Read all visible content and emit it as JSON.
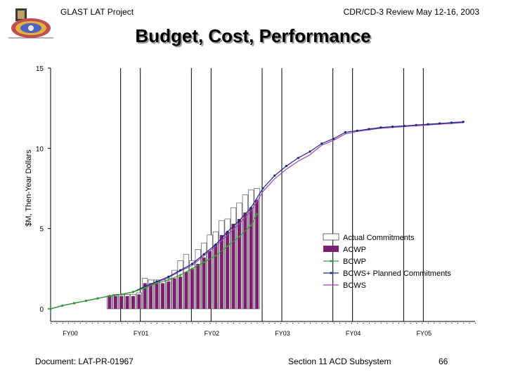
{
  "header": {
    "left": "GLAST LAT Project",
    "right": "CDR/CD-3 Review May 12-16, 2003"
  },
  "title": "Budget, Cost, Performance",
  "footer": {
    "document": "Document:   LAT-PR-01967",
    "section": "Section 11 ACD Subsystem",
    "page": "66"
  },
  "colors": {
    "acwp": "#7b1f6e",
    "bcwp": "#2e9e2e",
    "bcws_planned": "#1a2a7a",
    "bcws": "#a040c0",
    "actual": "#ffffff"
  },
  "chart_data": {
    "type": "bar",
    "ylabel": "$M, Then-Year Dollars",
    "xlabel": "",
    "ylim": [
      0,
      15
    ],
    "yticks": [
      "0",
      "5",
      "10",
      "15"
    ],
    "x_range": [
      0,
      72
    ],
    "fiscal_years": [
      {
        "label": "FY00",
        "month": 0
      },
      {
        "label": "FY01",
        "month": 12
      },
      {
        "label": "FY02",
        "month": 24
      },
      {
        "label": "FY03",
        "month": 36
      },
      {
        "label": "FY04",
        "month": 48
      },
      {
        "label": "FY05",
        "month": 60
      }
    ],
    "vertical_markers": [
      12,
      24,
      36,
      48,
      60
    ],
    "bar_months": [
      10,
      11,
      12,
      13,
      14,
      15,
      16,
      17,
      18,
      19,
      20,
      21,
      22,
      23,
      24,
      25,
      26,
      27,
      28,
      29,
      30,
      31,
      32,
      33,
      34,
      35
    ],
    "series": [
      {
        "name": "Actual Commitments",
        "kind": "bar",
        "values": [
          0.8,
          0.9,
          0.9,
          0.9,
          0.9,
          1.0,
          1.9,
          1.8,
          1.8,
          1.8,
          1.9,
          2.4,
          3.0,
          3.4,
          3.0,
          3.7,
          4.1,
          4.6,
          4.8,
          5.5,
          5.6,
          6.3,
          6.6,
          7.1,
          7.4,
          7.5
        ]
      },
      {
        "name": "ACWP",
        "kind": "bar",
        "values": [
          0.8,
          0.8,
          0.8,
          0.8,
          0.8,
          0.9,
          1.6,
          1.6,
          1.6,
          1.6,
          1.7,
          1.9,
          2.0,
          2.3,
          2.5,
          2.8,
          3.2,
          3.6,
          4.0,
          4.6,
          4.8,
          5.3,
          5.6,
          6.0,
          6.3,
          6.8
        ]
      },
      {
        "name": "BCWP",
        "kind": "line",
        "x": [
          0,
          2,
          4,
          6,
          8,
          10,
          12,
          14,
          16,
          18,
          20,
          22,
          24,
          26,
          28,
          30,
          32,
          34,
          35
        ],
        "values": [
          0,
          0.2,
          0.35,
          0.5,
          0.65,
          0.8,
          0.9,
          1.05,
          1.3,
          1.6,
          1.8,
          2.1,
          2.5,
          2.9,
          3.3,
          3.9,
          4.5,
          5.2,
          5.9
        ]
      },
      {
        "name": "BCWS+ Planned Commitments",
        "kind": "line",
        "x": [
          0,
          2,
          4,
          6,
          8,
          10,
          12,
          14,
          16,
          18,
          20,
          22,
          24,
          26,
          28,
          30,
          32,
          34,
          36,
          38,
          40,
          42,
          44,
          46,
          48,
          50,
          52,
          54,
          56,
          58,
          60,
          62,
          64,
          66,
          68,
          70
        ],
        "values": [
          0,
          0.2,
          0.35,
          0.5,
          0.65,
          0.8,
          0.9,
          1.05,
          1.4,
          1.7,
          2.0,
          2.4,
          2.8,
          3.4,
          4.0,
          4.8,
          5.5,
          6.3,
          7.5,
          8.3,
          8.9,
          9.4,
          9.8,
          10.3,
          10.6,
          11.0,
          11.1,
          11.2,
          11.3,
          11.35,
          11.4,
          11.45,
          11.5,
          11.55,
          11.6,
          11.65
        ]
      },
      {
        "name": "BCWS",
        "kind": "line",
        "x": [
          0,
          2,
          4,
          6,
          8,
          10,
          12,
          14,
          16,
          18,
          20,
          22,
          24,
          26,
          28,
          30,
          32,
          34,
          36,
          38,
          40,
          42,
          44,
          46,
          48,
          50,
          52,
          54,
          56,
          58,
          60,
          62,
          64,
          66,
          68,
          70
        ],
        "values": [
          0,
          0.2,
          0.35,
          0.5,
          0.65,
          0.8,
          0.9,
          1.05,
          1.35,
          1.65,
          1.95,
          2.35,
          2.7,
          3.3,
          3.9,
          4.6,
          5.3,
          6.1,
          7.3,
          8.1,
          8.7,
          9.2,
          9.6,
          10.2,
          10.5,
          10.9,
          11.05,
          11.15,
          11.25,
          11.3,
          11.35,
          11.4,
          11.45,
          11.5,
          11.55,
          11.6
        ]
      }
    ],
    "legend": {
      "position": "center-right",
      "entries": [
        "Actual Commitments",
        "ACWP",
        "BCWP",
        "BCWS+ Planned Commitments",
        "BCWS"
      ]
    },
    "grid": false
  }
}
